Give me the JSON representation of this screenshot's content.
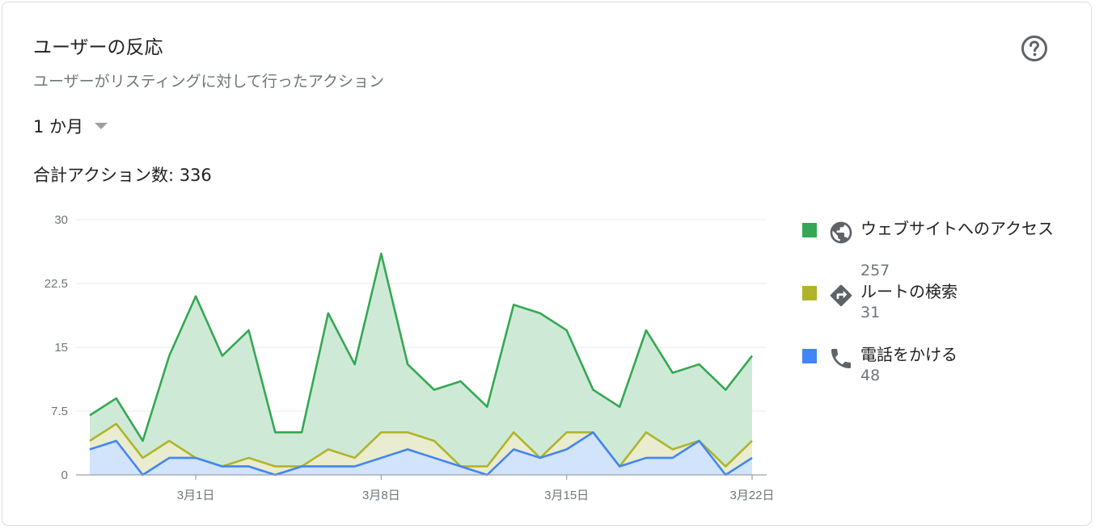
{
  "header": {
    "title": "ユーザーの反応",
    "subtitle": "ユーザーがリスティングに対して行ったアクション",
    "help_icon": "help-circle-icon"
  },
  "period": {
    "selected": "1 か月"
  },
  "total": {
    "text": "合計アクション数: 336"
  },
  "legend": {
    "items": [
      {
        "label": "ウェブサイトへのアクセス",
        "value": "257",
        "color": "#34a853",
        "icon": "globe-icon"
      },
      {
        "label": "ルートの検索",
        "value": "31",
        "color": "#afb42b",
        "icon": "directions-icon"
      },
      {
        "label": "電話をかける",
        "value": "48",
        "color": "#4285f4",
        "icon": "phone-icon"
      }
    ]
  },
  "chart_data": {
    "type": "area",
    "y_ticks": [
      "0",
      "7.5",
      "15",
      "22.5",
      "30"
    ],
    "ylim": [
      0,
      30
    ],
    "x_tick_labels": [
      "3月1日",
      "3月8日",
      "3月15日",
      "3月22日"
    ],
    "x_tick_index": [
      4,
      11,
      18,
      25
    ],
    "grid": true,
    "legend_position": "right",
    "series": [
      {
        "name": "ウェブサイトへのアクセス",
        "color": "#34a853",
        "fill": "#ceead6",
        "values": [
          7,
          9,
          4,
          14,
          21,
          14,
          17,
          5,
          5,
          19,
          13,
          26,
          13,
          10,
          11,
          8,
          20,
          19,
          17,
          10,
          8,
          17,
          12,
          13,
          10,
          14
        ]
      },
      {
        "name": "ルートの検索",
        "color": "#afb42b",
        "fill": "#eaeccf",
        "values": [
          4,
          6,
          2,
          4,
          2,
          1,
          2,
          1,
          1,
          3,
          2,
          5,
          5,
          4,
          1,
          1,
          5,
          2,
          5,
          5,
          1,
          5,
          3,
          4,
          1,
          4
        ]
      },
      {
        "name": "電話をかける",
        "color": "#4285f4",
        "fill": "#d2e3fc",
        "values": [
          3,
          4,
          0,
          2,
          2,
          1,
          1,
          0,
          1,
          1,
          1,
          2,
          3,
          2,
          1,
          0,
          3,
          2,
          3,
          5,
          1,
          2,
          2,
          4,
          0,
          2
        ]
      }
    ]
  }
}
